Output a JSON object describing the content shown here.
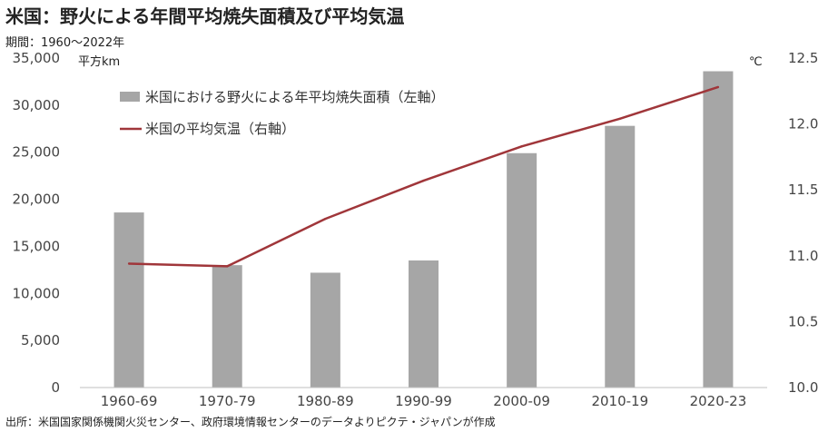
{
  "title": "米国：野火による年間平均焼失面積及び平均気温",
  "subtitle": "期間：1960～2022年",
  "source": "出所：米国国家関係機関火災センター、政府環境情報センターのデータよりピクテ・ジャパンが作成",
  "chart_data": {
    "type": "bar",
    "categories": [
      "1960-69",
      "1970-79",
      "1980-89",
      "1990-99",
      "2000-09",
      "2010-19",
      "2020-23"
    ],
    "series": [
      {
        "name": "米国における野火による年平均焼失面積（左軸）",
        "type": "bar",
        "axis": "left",
        "color": "#a6a6a6",
        "values": [
          18600,
          13000,
          12200,
          13500,
          24900,
          27800,
          33600
        ]
      },
      {
        "name": "米国の平均気温（右軸）",
        "type": "line",
        "axis": "right",
        "color": "#a0363a",
        "values": [
          10.94,
          10.92,
          11.28,
          11.57,
          11.83,
          12.04,
          12.28
        ]
      }
    ],
    "y_left": {
      "unit": "平方km",
      "range": [
        0,
        35000
      ],
      "ticks": [
        0,
        5000,
        10000,
        15000,
        20000,
        25000,
        30000,
        35000
      ],
      "tick_labels": [
        "0",
        "5,000",
        "10,000",
        "15,000",
        "20,000",
        "25,000",
        "30,000",
        "35,000"
      ]
    },
    "y_right": {
      "unit": "℃",
      "range": [
        10.0,
        12.5
      ],
      "ticks": [
        10.0,
        10.5,
        11.0,
        11.5,
        12.0,
        12.5
      ],
      "tick_labels": [
        "10.0",
        "10.5",
        "11.0",
        "11.5",
        "12.0",
        "12.5"
      ]
    },
    "grid": false,
    "legend": "top-left"
  }
}
